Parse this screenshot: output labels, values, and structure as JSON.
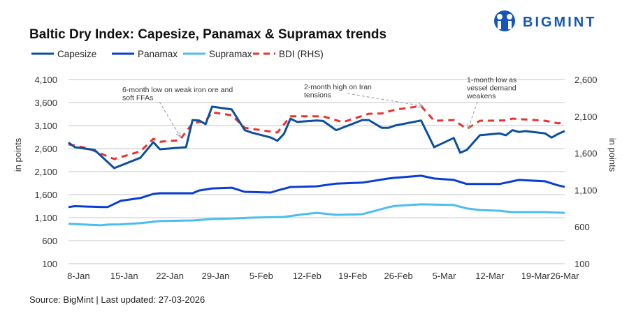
{
  "logo": {
    "text": "BIGMINT",
    "color": "#1457b8"
  },
  "chart_data": {
    "type": "line",
    "title": "Baltic Dry Index: Capesize, Panamax & Supramax trends",
    "ylabel": "in points",
    "y2label": "in points",
    "ylim": [
      100,
      4100
    ],
    "y2lim": [
      100,
      2600
    ],
    "yticks": [
      "100",
      "600",
      "1,100",
      "1,600",
      "2,100",
      "2,600",
      "3,100",
      "3,600",
      "4,100"
    ],
    "yticks_values": [
      100,
      600,
      1100,
      1600,
      2100,
      2600,
      3100,
      3600,
      4100
    ],
    "y2ticks": [
      "100",
      "600",
      "1,100",
      "1,600",
      "2,100",
      "2,600"
    ],
    "y2ticks_values": [
      100,
      600,
      1100,
      1600,
      2100,
      2600
    ],
    "x_unit": "day of year 2026",
    "xlim": [
      7,
      83
    ],
    "xticks": [
      "8-Jan",
      "15-Jan",
      "22-Jan",
      "29-Jan",
      "5-Feb",
      "12-Feb",
      "19-Feb",
      "26-Feb",
      "5-Mar",
      "12-Mar",
      "19-Mar",
      "26-Mar"
    ],
    "xticks_values": [
      8,
      15,
      22,
      29,
      36,
      43,
      50,
      57,
      64,
      71,
      78,
      85
    ],
    "grid": true,
    "legend_position": "top-left",
    "series": [
      {
        "name": "Capesize",
        "axis": "left",
        "color": "#0b4fa0",
        "dashed": false,
        "x": [
          7,
          8,
          11,
          14,
          18,
          20,
          21,
          25,
          26,
          27,
          28,
          29,
          32,
          34,
          35,
          38,
          39,
          40,
          41,
          42,
          45,
          46,
          48,
          52,
          53,
          55,
          56,
          57,
          61,
          63,
          66,
          67,
          68,
          70,
          73,
          74,
          75,
          76,
          77,
          80,
          81,
          82,
          83
        ],
        "values": [
          2730,
          2630,
          2570,
          2175,
          2400,
          2740,
          2585,
          2630,
          3220,
          3210,
          3130,
          3510,
          3450,
          3000,
          2950,
          2840,
          2770,
          2920,
          3250,
          3180,
          3210,
          3200,
          3000,
          3220,
          3220,
          3050,
          3050,
          3100,
          3210,
          2630,
          2830,
          2510,
          2570,
          2890,
          2930,
          2890,
          3000,
          2960,
          2980,
          2930,
          2840,
          2920,
          2980
        ]
      },
      {
        "name": "Panamax",
        "axis": "left",
        "color": "#0a3dd4",
        "dashed": false,
        "x": [
          7,
          8,
          12,
          13,
          15,
          18,
          20,
          21,
          26,
          27,
          29,
          32,
          34,
          38,
          39,
          41,
          45,
          48,
          52,
          56,
          57,
          61,
          63,
          66,
          68,
          73,
          76,
          80,
          82,
          83
        ],
        "values": [
          1330,
          1350,
          1330,
          1330,
          1465,
          1525,
          1615,
          1630,
          1630,
          1690,
          1735,
          1750,
          1660,
          1645,
          1690,
          1765,
          1780,
          1840,
          1860,
          1950,
          1965,
          2010,
          1950,
          1920,
          1830,
          1830,
          1920,
          1890,
          1800,
          1770
        ]
      },
      {
        "name": "Supramax",
        "axis": "left",
        "color": "#4bbdf0",
        "dashed": false,
        "x": [
          7,
          12,
          13,
          15,
          18,
          21,
          26,
          29,
          32,
          35,
          40,
          43,
          45,
          48,
          52,
          56,
          57,
          61,
          66,
          68,
          70,
          73,
          75,
          80,
          83
        ],
        "values": [
          965,
          935,
          950,
          955,
          980,
          1025,
          1040,
          1070,
          1080,
          1100,
          1115,
          1175,
          1205,
          1160,
          1175,
          1325,
          1355,
          1390,
          1375,
          1300,
          1265,
          1250,
          1220,
          1220,
          1205
        ]
      },
      {
        "name": "BDI (RHS)",
        "axis": "right",
        "color": "#e8332f",
        "dashed": true,
        "x": [
          7,
          10,
          14,
          18,
          20,
          21,
          24,
          26,
          28,
          29,
          32,
          34,
          39,
          41,
          46,
          49,
          53,
          55,
          57,
          61,
          63,
          66,
          68,
          70,
          74,
          75,
          80,
          82,
          83
        ],
        "values": [
          1720,
          1665,
          1520,
          1625,
          1795,
          1755,
          1775,
          2005,
          2040,
          2155,
          2115,
          1945,
          1880,
          2100,
          2100,
          2020,
          2135,
          2140,
          2190,
          2240,
          2040,
          2050,
          1930,
          2040,
          2045,
          2070,
          2040,
          2005,
          2015
        ]
      }
    ],
    "annotations": [
      {
        "lines": [
          "6-month low on weak iron ore and",
          "soft FFAs"
        ],
        "x": 25,
        "series": "BDI (RHS)"
      },
      {
        "lines": [
          "2-month high on Iran",
          "tensions"
        ],
        "x": 61,
        "series": "BDI (RHS)"
      },
      {
        "lines": [
          "1-month low as",
          "vessel demand",
          "weakens"
        ],
        "x": 68,
        "series": "BDI (RHS)"
      }
    ],
    "source": "Source: BigMint | Last updated: 27-03-2026"
  }
}
